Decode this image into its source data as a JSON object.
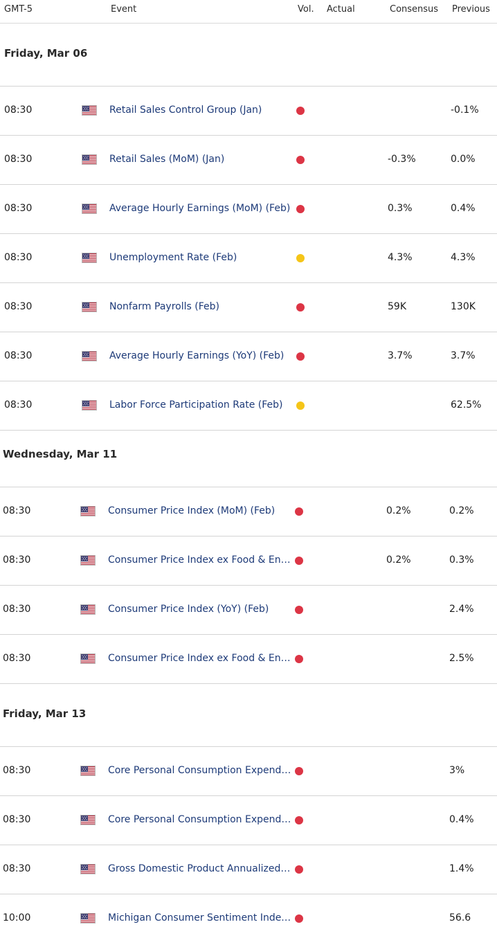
{
  "header": {
    "timezone": "GMT-5",
    "event": "Event",
    "vol": "Vol.",
    "actual": "Actual",
    "consensus": "Consensus",
    "previous": "Previous"
  },
  "colors": {
    "high": "#dc3545",
    "medium": "#f5c518"
  },
  "sections": [
    {
      "title": "Friday, Mar 06",
      "rows": [
        {
          "time": "08:30",
          "country": "us-flag-icon",
          "event": "Retail Sales Control Group (Jan)",
          "vol": "high",
          "actual": "",
          "consensus": "",
          "previous": "-0.1%"
        },
        {
          "time": "08:30",
          "country": "us-flag-icon",
          "event": "Retail Sales (MoM) (Jan)",
          "vol": "high",
          "actual": "",
          "consensus": "-0.3%",
          "previous": "0.0%"
        },
        {
          "time": "08:30",
          "country": "us-flag-icon",
          "event": "Average Hourly Earnings (MoM) (Feb)",
          "vol": "high",
          "actual": "",
          "consensus": "0.3%",
          "previous": "0.4%"
        },
        {
          "time": "08:30",
          "country": "us-flag-icon",
          "event": "Unemployment Rate (Feb)",
          "vol": "medium",
          "actual": "",
          "consensus": "4.3%",
          "previous": "4.3%"
        },
        {
          "time": "08:30",
          "country": "us-flag-icon",
          "event": "Nonfarm Payrolls (Feb)",
          "vol": "high",
          "actual": "",
          "consensus": "59K",
          "previous": "130K"
        },
        {
          "time": "08:30",
          "country": "us-flag-icon",
          "event": "Average Hourly Earnings (YoY) (Feb)",
          "vol": "high",
          "actual": "",
          "consensus": "3.7%",
          "previous": "3.7%"
        },
        {
          "time": "08:30",
          "country": "us-flag-icon",
          "event": "Labor Force Participation Rate (Feb)",
          "vol": "medium",
          "actual": "",
          "consensus": "",
          "previous": "62.5%"
        }
      ]
    },
    {
      "title": "Wednesday, Mar 11",
      "rows": [
        {
          "time": "08:30",
          "country": "us-flag-icon",
          "event": "Consumer Price Index (MoM) (Feb)",
          "vol": "high",
          "actual": "",
          "consensus": "0.2%",
          "previous": "0.2%"
        },
        {
          "time": "08:30",
          "country": "us-flag-icon",
          "event": "Consumer Price Index ex Food & Ener…",
          "vol": "high",
          "actual": "",
          "consensus": "0.2%",
          "previous": "0.3%"
        },
        {
          "time": "08:30",
          "country": "us-flag-icon",
          "event": "Consumer Price Index (YoY) (Feb)",
          "vol": "high",
          "actual": "",
          "consensus": "",
          "previous": "2.4%"
        },
        {
          "time": "08:30",
          "country": "us-flag-icon",
          "event": "Consumer Price Index ex Food & Ener…",
          "vol": "high",
          "actual": "",
          "consensus": "",
          "previous": "2.5%"
        }
      ]
    },
    {
      "title": "Friday, Mar 13",
      "rows": [
        {
          "time": "08:30",
          "country": "us-flag-icon",
          "event": "Core Personal Consumption Expendit…",
          "vol": "high",
          "actual": "",
          "consensus": "",
          "previous": "3%"
        },
        {
          "time": "08:30",
          "country": "us-flag-icon",
          "event": "Core Personal Consumption Expendit…",
          "vol": "high",
          "actual": "",
          "consensus": "",
          "previous": "0.4%"
        },
        {
          "time": "08:30",
          "country": "us-flag-icon",
          "event": "Gross Domestic Product Annualized (…",
          "vol": "high",
          "actual": "",
          "consensus": "",
          "previous": "1.4%"
        },
        {
          "time": "10:00",
          "country": "us-flag-icon",
          "event": "Michigan Consumer Sentiment Index…",
          "vol": "high",
          "actual": "",
          "consensus": "",
          "previous": "56.6"
        }
      ]
    }
  ]
}
